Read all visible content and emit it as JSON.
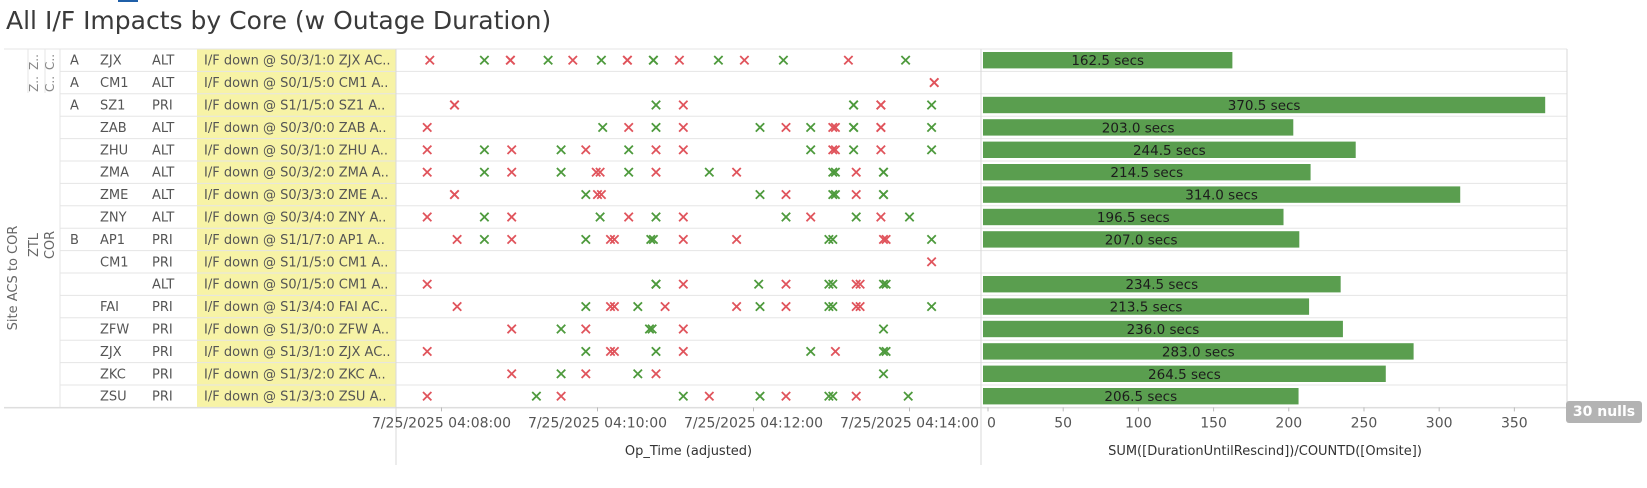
{
  "title": "All I/F Impacts by Core (w Outage Duration)",
  "row_axis_label": "Site ACS to COR",
  "group_labels": {
    "ztl": "ZTL",
    "cor": "COR",
    "top_a": "Z..",
    "top_b": "C..",
    "top_c": "Z..",
    "top_d": "C.."
  },
  "rows": [
    {
      "tier": "A",
      "site": "ZJX",
      "type": "ALT",
      "label": "I/F down @ S0/3/1:0 ZJX AC.."
    },
    {
      "tier": "A",
      "site": "CM1",
      "type": "ALT",
      "label": "I/F down @ S0/1/5:0 CM1 A.."
    },
    {
      "tier": "A",
      "site": "SZ1",
      "type": "PRI",
      "label": "I/F down @ S1/1/5:0 SZ1 A.."
    },
    {
      "tier": "",
      "site": "ZAB",
      "type": "ALT",
      "label": "I/F down @ S0/3/0:0 ZAB A.."
    },
    {
      "tier": "",
      "site": "ZHU",
      "type": "ALT",
      "label": "I/F down @ S0/3/1:0 ZHU A.."
    },
    {
      "tier": "",
      "site": "ZMA",
      "type": "ALT",
      "label": "I/F down @ S0/3/2:0 ZMA A.."
    },
    {
      "tier": "",
      "site": "ZME",
      "type": "ALT",
      "label": "I/F down @ S0/3/3:0 ZME A.."
    },
    {
      "tier": "",
      "site": "ZNY",
      "type": "ALT",
      "label": "I/F down @ S0/3/4:0 ZNY A.."
    },
    {
      "tier": "B",
      "site": "AP1",
      "type": "PRI",
      "label": "I/F down @ S1/1/7:0 AP1 A.."
    },
    {
      "tier": "",
      "site": "CM1",
      "type": "PRI",
      "label": "I/F down @ S1/1/5:0 CM1 A.."
    },
    {
      "tier": "",
      "site": "",
      "type": "ALT",
      "label": "I/F down @ S0/1/5:0 CM1 A.."
    },
    {
      "tier": "",
      "site": "FAI",
      "type": "PRI",
      "label": "I/F down @ S1/3/4:0 FAI AC.."
    },
    {
      "tier": "",
      "site": "ZFW",
      "type": "PRI",
      "label": "I/F down @ S1/3/0:0 ZFW A.."
    },
    {
      "tier": "",
      "site": "ZJX",
      "type": "PRI",
      "label": "I/F down @ S1/3/1:0 ZJX AC.."
    },
    {
      "tier": "",
      "site": "ZKC",
      "type": "PRI",
      "label": "I/F down @ S1/3/2:0 ZKC A.."
    },
    {
      "tier": "",
      "site": "ZSU",
      "type": "PRI",
      "label": "I/F down @ S1/3/3:0 ZSU A.."
    }
  ],
  "nulls_badge": "30 nulls",
  "colors": {
    "green": "#4e9a3d",
    "red": "#e0545c",
    "bar": "#5a9e4f",
    "highlight": "#f7f3a6",
    "grid": "#e5e5e5"
  },
  "chart_data": [
    {
      "type": "scatter",
      "xlabel": "Op_Time (adjusted)",
      "x_ticks": [
        "7/25/2025 04:08:00",
        "7/25/2025 04:10:00",
        "7/25/2025 04:12:00",
        "7/25/2025 04:14:00"
      ],
      "x_range": [
        "7/25/2025 04:07:25",
        "7/25/2025 04:14:55"
      ],
      "series": [
        {
          "name": "green",
          "marker": "x"
        },
        {
          "name": "red",
          "marker": "x"
        }
      ],
      "points": [
        [
          [
            "04:07:51",
            "r"
          ],
          [
            "04:08:33",
            "g"
          ],
          [
            "04:08:53",
            "r"
          ],
          [
            "04:08:53",
            "r"
          ],
          [
            "04:09:22",
            "g"
          ],
          [
            "04:09:41",
            "r"
          ],
          [
            "04:10:03",
            "g"
          ],
          [
            "04:10:23",
            "r"
          ],
          [
            "04:10:23",
            "r"
          ],
          [
            "04:10:43",
            "g"
          ],
          [
            "04:10:43",
            "g"
          ],
          [
            "04:11:03",
            "r"
          ],
          [
            "04:11:33",
            "g"
          ],
          [
            "04:11:53",
            "r"
          ],
          [
            "04:12:23",
            "g"
          ],
          [
            "04:13:13",
            "r"
          ],
          [
            "04:13:57",
            "g"
          ]
        ],
        [
          [
            "04:14:19",
            "r"
          ],
          [
            "04:14:19",
            "r"
          ]
        ],
        [
          [
            "04:08:10",
            "r"
          ],
          [
            "04:08:10",
            "r"
          ],
          [
            "04:10:45",
            "g"
          ],
          [
            "04:11:06",
            "r"
          ],
          [
            "04:13:17",
            "g"
          ],
          [
            "04:13:17",
            "g"
          ],
          [
            "04:13:38",
            "r"
          ],
          [
            "04:13:38",
            "r"
          ],
          [
            "04:14:17",
            "g"
          ]
        ],
        [
          [
            "04:07:49",
            "r"
          ],
          [
            "04:10:04",
            "g"
          ],
          [
            "04:10:24",
            "r"
          ],
          [
            "04:10:45",
            "g"
          ],
          [
            "04:11:06",
            "r"
          ],
          [
            "04:12:05",
            "g"
          ],
          [
            "04:12:25",
            "r"
          ],
          [
            "04:12:44",
            "g"
          ],
          [
            "04:13:01",
            "r"
          ],
          [
            "04:13:03",
            "r"
          ],
          [
            "04:13:17",
            "g"
          ],
          [
            "04:13:17",
            "g"
          ],
          [
            "04:13:38",
            "r"
          ],
          [
            "04:13:38",
            "r"
          ],
          [
            "04:14:17",
            "g"
          ]
        ],
        [
          [
            "04:07:49",
            "r"
          ],
          [
            "04:08:33",
            "g"
          ],
          [
            "04:08:54",
            "r"
          ],
          [
            "04:09:32",
            "g"
          ],
          [
            "04:09:51",
            "r"
          ],
          [
            "04:10:24",
            "g"
          ],
          [
            "04:10:45",
            "r"
          ],
          [
            "04:11:06",
            "r"
          ],
          [
            "04:12:44",
            "g"
          ],
          [
            "04:13:01",
            "r"
          ],
          [
            "04:13:03",
            "r"
          ],
          [
            "04:13:17",
            "g"
          ],
          [
            "04:13:38",
            "r"
          ],
          [
            "04:14:17",
            "g"
          ]
        ],
        [
          [
            "04:07:49",
            "r"
          ],
          [
            "04:08:33",
            "g"
          ],
          [
            "04:08:54",
            "r"
          ],
          [
            "04:09:32",
            "g"
          ],
          [
            "04:09:59",
            "r"
          ],
          [
            "04:10:02",
            "r"
          ],
          [
            "04:10:24",
            "g"
          ],
          [
            "04:10:45",
            "r"
          ],
          [
            "04:11:26",
            "g"
          ],
          [
            "04:11:47",
            "r"
          ],
          [
            "04:13:01",
            "g"
          ],
          [
            "04:13:03",
            "g"
          ],
          [
            "04:13:19",
            "r"
          ],
          [
            "04:13:40",
            "g"
          ],
          [
            "04:13:40",
            "g"
          ]
        ],
        [
          [
            "04:08:10",
            "r"
          ],
          [
            "04:08:10",
            "r"
          ],
          [
            "04:09:51",
            "g"
          ],
          [
            "04:10:00",
            "r"
          ],
          [
            "04:10:03",
            "r"
          ],
          [
            "04:12:05",
            "g"
          ],
          [
            "04:12:25",
            "r"
          ],
          [
            "04:13:01",
            "g"
          ],
          [
            "04:13:03",
            "g"
          ],
          [
            "04:13:19",
            "r"
          ],
          [
            "04:13:40",
            "g"
          ],
          [
            "04:13:40",
            "g"
          ]
        ],
        [
          [
            "04:07:49",
            "r"
          ],
          [
            "04:08:33",
            "g"
          ],
          [
            "04:08:54",
            "r"
          ],
          [
            "04:10:02",
            "g"
          ],
          [
            "04:10:24",
            "r"
          ],
          [
            "04:10:45",
            "g"
          ],
          [
            "04:11:06",
            "r"
          ],
          [
            "04:12:25",
            "g"
          ],
          [
            "04:12:44",
            "r"
          ],
          [
            "04:13:19",
            "g"
          ],
          [
            "04:13:38",
            "r"
          ],
          [
            "04:14:00",
            "g"
          ]
        ],
        [
          [
            "04:08:12",
            "r"
          ],
          [
            "04:08:33",
            "g"
          ],
          [
            "04:08:54",
            "r"
          ],
          [
            "04:09:51",
            "g"
          ],
          [
            "04:10:10",
            "r"
          ],
          [
            "04:10:13",
            "r"
          ],
          [
            "04:10:41",
            "g"
          ],
          [
            "04:10:43",
            "g"
          ],
          [
            "04:11:06",
            "r"
          ],
          [
            "04:11:47",
            "r"
          ],
          [
            "04:12:58",
            "g"
          ],
          [
            "04:13:01",
            "g"
          ],
          [
            "04:13:40",
            "r"
          ],
          [
            "04:13:42",
            "r"
          ],
          [
            "04:14:17",
            "g"
          ]
        ],
        [
          [
            "04:14:17",
            "r"
          ]
        ],
        [
          [
            "04:07:49",
            "r"
          ],
          [
            "04:10:45",
            "g"
          ],
          [
            "04:10:45",
            "g"
          ],
          [
            "04:11:06",
            "r"
          ],
          [
            "04:12:04",
            "g"
          ],
          [
            "04:12:25",
            "r"
          ],
          [
            "04:12:58",
            "g"
          ],
          [
            "04:13:01",
            "g"
          ],
          [
            "04:13:19",
            "r"
          ],
          [
            "04:13:22",
            "r"
          ],
          [
            "04:13:40",
            "g"
          ],
          [
            "04:13:42",
            "g"
          ]
        ],
        [
          [
            "04:08:12",
            "r"
          ],
          [
            "04:09:51",
            "g"
          ],
          [
            "04:10:10",
            "r"
          ],
          [
            "04:10:13",
            "r"
          ],
          [
            "04:10:31",
            "g"
          ],
          [
            "04:10:52",
            "r"
          ],
          [
            "04:11:47",
            "r"
          ],
          [
            "04:12:05",
            "g"
          ],
          [
            "04:12:25",
            "r"
          ],
          [
            "04:12:58",
            "g"
          ],
          [
            "04:13:01",
            "g"
          ],
          [
            "04:13:19",
            "r"
          ],
          [
            "04:13:22",
            "r"
          ],
          [
            "04:14:17",
            "g"
          ]
        ],
        [
          [
            "04:08:54",
            "r"
          ],
          [
            "04:09:32",
            "g"
          ],
          [
            "04:09:51",
            "r"
          ],
          [
            "04:10:40",
            "g"
          ],
          [
            "04:10:42",
            "g"
          ],
          [
            "04:11:06",
            "r"
          ],
          [
            "04:13:40",
            "g"
          ]
        ],
        [
          [
            "04:07:49",
            "r"
          ],
          [
            "04:09:51",
            "g"
          ],
          [
            "04:10:10",
            "r"
          ],
          [
            "04:10:13",
            "r"
          ],
          [
            "04:10:45",
            "g"
          ],
          [
            "04:11:06",
            "r"
          ],
          [
            "04:12:44",
            "g"
          ],
          [
            "04:13:03",
            "r"
          ],
          [
            "04:13:40",
            "g"
          ],
          [
            "04:13:42",
            "g"
          ]
        ],
        [
          [
            "04:08:54",
            "r"
          ],
          [
            "04:09:32",
            "g"
          ],
          [
            "04:09:51",
            "r"
          ],
          [
            "04:10:31",
            "g"
          ],
          [
            "04:10:45",
            "r"
          ],
          [
            "04:13:40",
            "g"
          ]
        ],
        [
          [
            "04:07:49",
            "r"
          ],
          [
            "04:09:13",
            "g"
          ],
          [
            "04:09:32",
            "r"
          ],
          [
            "04:11:06",
            "g"
          ],
          [
            "04:11:26",
            "r"
          ],
          [
            "04:12:05",
            "g"
          ],
          [
            "04:12:25",
            "r"
          ],
          [
            "04:12:58",
            "g"
          ],
          [
            "04:13:01",
            "g"
          ],
          [
            "04:13:19",
            "r"
          ],
          [
            "04:13:59",
            "g"
          ]
        ]
      ]
    },
    {
      "type": "bar",
      "orientation": "horizontal",
      "xlabel": "SUM([DurationUntilRescind])/COUNTD([Omsite])",
      "xlim": [
        0,
        385
      ],
      "x_ticks": [
        0,
        50,
        100,
        150,
        200,
        250,
        300,
        350
      ],
      "values": [
        162.5,
        null,
        370.5,
        203.0,
        244.5,
        214.5,
        314.0,
        196.5,
        207.0,
        null,
        234.5,
        213.5,
        236.0,
        283.0,
        264.5,
        206.5
      ],
      "labels": [
        "162.5 secs",
        "",
        "370.5 secs",
        "203.0 secs",
        "244.5 secs",
        "214.5 secs",
        "314.0 secs",
        "196.5 secs",
        "207.0 secs",
        "",
        "234.5 secs",
        "213.5 secs",
        "236.0 secs",
        "283.0 secs",
        "264.5 secs",
        "206.5 secs"
      ]
    }
  ]
}
